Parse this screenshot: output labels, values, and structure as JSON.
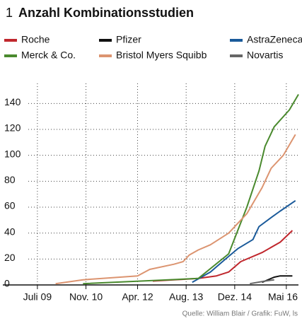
{
  "chart_data": {
    "type": "line",
    "number": "1",
    "title": "Anzahl Kombinationsstudien",
    "source": "Quelle: William Blair / Grafik: FuW, ls",
    "xlim": [
      "2009-04",
      "2016-09"
    ],
    "xticks": [
      {
        "value": "2009-07",
        "label": "Juli 09"
      },
      {
        "value": "2010-11",
        "label": "Nov. 10"
      },
      {
        "value": "2012-04",
        "label": "Apr. 12"
      },
      {
        "value": "2013-08",
        "label": "Aug. 13"
      },
      {
        "value": "2014-12",
        "label": "Dez. 14"
      },
      {
        "value": "2016-05",
        "label": "Mai 16"
      }
    ],
    "ylim": [
      0,
      150
    ],
    "yticks": [
      0,
      20,
      40,
      60,
      80,
      100,
      120,
      140
    ],
    "grid": true,
    "series": [
      {
        "name": "Roche",
        "color": "#c0272d",
        "x": [
          "2012-09",
          "2013-12",
          "2014-06",
          "2014-10",
          "2015-02",
          "2015-09",
          "2016-03",
          "2016-07"
        ],
        "values": [
          3,
          5,
          7,
          10,
          18,
          25,
          33,
          42
        ]
      },
      {
        "name": "Pfizer",
        "color": "#111111",
        "x": [
          "2015-09",
          "2016-01",
          "2016-03",
          "2016-07"
        ],
        "values": [
          2,
          6,
          7,
          7
        ]
      },
      {
        "name": "AstraZeneca",
        "color": "#1a5a9a",
        "x": [
          "2013-10",
          "2014-04",
          "2014-09",
          "2015-01",
          "2015-06",
          "2015-08",
          "2015-12",
          "2016-03",
          "2016-08"
        ],
        "values": [
          2,
          10,
          20,
          28,
          35,
          45,
          52,
          57,
          65
        ]
      },
      {
        "name": "Merck & Co.",
        "color": "#4a8a2e",
        "x": [
          "2010-10",
          "2013-12",
          "2014-10",
          "2015-04",
          "2015-08",
          "2015-10",
          "2016-01",
          "2016-06",
          "2016-09"
        ],
        "values": [
          1,
          5,
          24,
          60,
          88,
          107,
          122,
          135,
          147
        ]
      },
      {
        "name": "Bristol Myers Squibb",
        "color": "#dc9470",
        "x": [
          "2010-01",
          "2010-10",
          "2012-04",
          "2012-08",
          "2013-04",
          "2013-07",
          "2013-09",
          "2013-12",
          "2014-04",
          "2014-10",
          "2015-04",
          "2015-09",
          "2015-12",
          "2016-04",
          "2016-08"
        ],
        "values": [
          1,
          4,
          7,
          12,
          16,
          18,
          23,
          27,
          31,
          40,
          55,
          75,
          90,
          100,
          116
        ]
      },
      {
        "name": "Novartis",
        "color": "#666666",
        "x": [
          "2015-05",
          "2015-10",
          "2016-01"
        ],
        "values": [
          1,
          3,
          4
        ]
      }
    ]
  }
}
